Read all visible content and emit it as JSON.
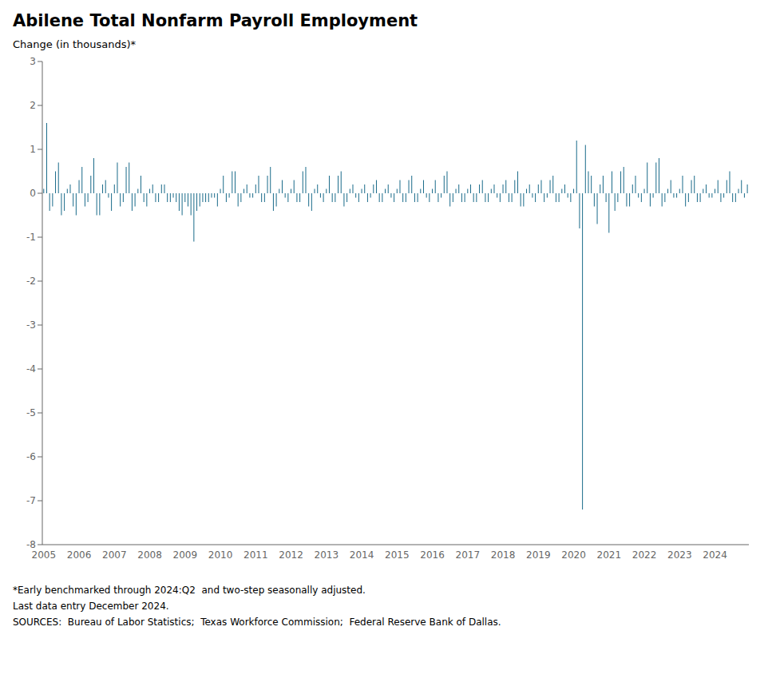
{
  "chart_data": {
    "type": "bar",
    "title": "Abilene Total Nonfarm Payroll Employment",
    "ylabel": "Change (in thousands)*",
    "annotations": [
      "*Early benchmarked through 2024:Q2  and two-step seasonally adjusted.",
      "Last data entry December 2024.",
      "SOURCES:  Bureau of Labor Statistics;  Texas Workforce Commission;  Federal Reserve Bank of Dallas."
    ],
    "color": "#1a6b8a",
    "grid": false,
    "ylim": [
      -8,
      3
    ],
    "yticks": [
      -8,
      -7,
      -6,
      -5,
      -4,
      -3,
      -2,
      -1,
      0,
      1,
      2,
      3
    ],
    "categories": [
      "2005",
      null,
      null,
      null,
      null,
      null,
      null,
      null,
      null,
      null,
      null,
      null,
      "2006",
      null,
      null,
      null,
      null,
      null,
      null,
      null,
      null,
      null,
      null,
      null,
      "2007",
      null,
      null,
      null,
      null,
      null,
      null,
      null,
      null,
      null,
      null,
      null,
      "2008",
      null,
      null,
      null,
      null,
      null,
      null,
      null,
      null,
      null,
      null,
      null,
      "2009",
      null,
      null,
      null,
      null,
      null,
      null,
      null,
      null,
      null,
      null,
      null,
      "2010",
      null,
      null,
      null,
      null,
      null,
      null,
      null,
      null,
      null,
      null,
      null,
      "2011",
      null,
      null,
      null,
      null,
      null,
      null,
      null,
      null,
      null,
      null,
      null,
      "2012",
      null,
      null,
      null,
      null,
      null,
      null,
      null,
      null,
      null,
      null,
      null,
      "2013",
      null,
      null,
      null,
      null,
      null,
      null,
      null,
      null,
      null,
      null,
      null,
      "2014",
      null,
      null,
      null,
      null,
      null,
      null,
      null,
      null,
      null,
      null,
      null,
      "2015",
      null,
      null,
      null,
      null,
      null,
      null,
      null,
      null,
      null,
      null,
      null,
      "2016",
      null,
      null,
      null,
      null,
      null,
      null,
      null,
      null,
      null,
      null,
      null,
      "2017",
      null,
      null,
      null,
      null,
      null,
      null,
      null,
      null,
      null,
      null,
      null,
      "2018",
      null,
      null,
      null,
      null,
      null,
      null,
      null,
      null,
      null,
      null,
      null,
      "2019",
      null,
      null,
      null,
      null,
      null,
      null,
      null,
      null,
      null,
      null,
      null,
      "2020",
      null,
      null,
      null,
      null,
      null,
      null,
      null,
      null,
      null,
      null,
      null,
      "2021",
      null,
      null,
      null,
      null,
      null,
      null,
      null,
      null,
      null,
      null,
      null,
      "2022",
      null,
      null,
      null,
      null,
      null,
      null,
      null,
      null,
      null,
      null,
      null,
      "2023",
      null,
      null,
      null,
      null,
      null,
      null,
      null,
      null,
      null,
      null,
      null,
      "2024",
      null,
      null,
      null,
      null,
      null,
      null,
      null,
      null,
      null,
      null,
      null
    ],
    "values": [
      0.1,
      1.6,
      -0.4,
      -0.3,
      0.5,
      0.7,
      -0.5,
      -0.4,
      0.1,
      0.2,
      -0.3,
      -0.5,
      0.3,
      0.6,
      -0.3,
      -0.2,
      0.4,
      0.8,
      -0.5,
      -0.5,
      0.2,
      0.3,
      -0.1,
      -0.4,
      0.2,
      0.7,
      -0.3,
      -0.2,
      0.6,
      0.7,
      -0.4,
      -0.3,
      0.1,
      0.4,
      -0.2,
      -0.3,
      0.1,
      0.2,
      -0.2,
      -0.2,
      0.2,
      0.2,
      -0.2,
      -0.2,
      -0.1,
      -0.2,
      -0.4,
      -0.5,
      -0.2,
      -0.3,
      -0.5,
      -1.1,
      -0.4,
      -0.3,
      -0.2,
      -0.2,
      -0.2,
      -0.1,
      -0.1,
      -0.3,
      0.1,
      0.4,
      -0.2,
      -0.1,
      0.5,
      0.5,
      -0.3,
      -0.2,
      0.1,
      0.2,
      -0.1,
      -0.1,
      0.2,
      0.4,
      -0.2,
      -0.2,
      0.4,
      0.6,
      -0.4,
      -0.3,
      0.1,
      0.3,
      -0.1,
      -0.2,
      0.1,
      0.3,
      -0.2,
      -0.2,
      0.5,
      0.6,
      -0.3,
      -0.4,
      0.1,
      0.2,
      -0.1,
      -0.2,
      0.1,
      0.4,
      -0.2,
      -0.2,
      0.4,
      0.5,
      -0.3,
      -0.2,
      0.1,
      0.2,
      -0.1,
      -0.2,
      0.1,
      0.2,
      -0.2,
      -0.1,
      0.2,
      0.3,
      -0.2,
      -0.2,
      0.1,
      0.2,
      -0.1,
      -0.2,
      0.1,
      0.3,
      -0.2,
      -0.2,
      0.3,
      0.4,
      -0.2,
      -0.2,
      0.1,
      0.3,
      -0.1,
      -0.2,
      0.1,
      0.3,
      -0.2,
      -0.1,
      0.4,
      0.5,
      -0.3,
      -0.2,
      0.1,
      0.2,
      -0.2,
      -0.2,
      0.1,
      0.2,
      -0.2,
      -0.2,
      0.2,
      0.3,
      -0.2,
      -0.2,
      0.1,
      0.2,
      -0.1,
      -0.2,
      0.2,
      0.3,
      -0.2,
      -0.2,
      0.3,
      0.5,
      -0.3,
      -0.3,
      0.1,
      0.2,
      -0.1,
      -0.2,
      0.2,
      0.3,
      -0.2,
      -0.1,
      0.3,
      0.4,
      -0.2,
      -0.2,
      0.1,
      0.2,
      -0.1,
      -0.2,
      0.1,
      1.2,
      -0.8,
      -7.2,
      1.1,
      0.5,
      0.4,
      -0.3,
      -0.7,
      0.2,
      0.4,
      -0.2,
      -0.9,
      0.5,
      -0.4,
      -0.2,
      0.5,
      0.6,
      -0.3,
      -0.3,
      0.2,
      0.4,
      -0.1,
      -0.2,
      0.1,
      0.7,
      -0.3,
      -0.1,
      0.7,
      0.8,
      -0.3,
      -0.2,
      0.1,
      0.3,
      -0.1,
      -0.1,
      0.1,
      0.4,
      -0.3,
      -0.2,
      0.3,
      0.4,
      -0.2,
      -0.2,
      0.1,
      0.2,
      -0.1,
      -0.1,
      0.1,
      0.3,
      -0.2,
      -0.1,
      0.3,
      0.5,
      -0.2,
      -0.2,
      0.1,
      0.3,
      -0.1,
      0.2
    ]
  }
}
